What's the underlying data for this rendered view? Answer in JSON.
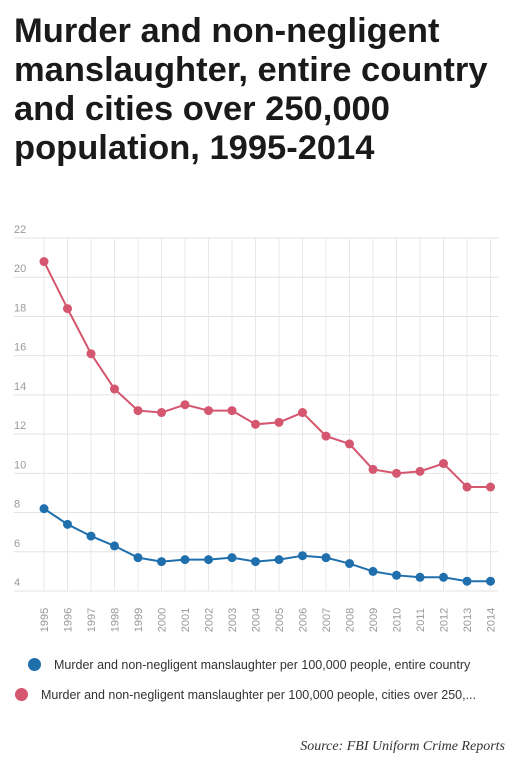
{
  "chart_data": {
    "type": "line",
    "title": "Murder and non-negligent manslaughter, entire country and cities over 250,000 population, 1995-2014",
    "categories": [
      "1995",
      "1996",
      "1997",
      "1998",
      "1999",
      "2000",
      "2001",
      "2002",
      "2003",
      "2004",
      "2005",
      "2006",
      "2007",
      "2008",
      "2009",
      "2010",
      "2011",
      "2012",
      "2013",
      "2014"
    ],
    "series": [
      {
        "name": "Murder and non-negligent manslaughter per 100,000 people, entire country",
        "color": "#1f6fad",
        "values": [
          8.2,
          7.4,
          6.8,
          6.3,
          5.7,
          5.5,
          5.6,
          5.6,
          5.7,
          5.5,
          5.6,
          5.8,
          5.7,
          5.4,
          5.0,
          4.8,
          4.7,
          4.7,
          4.5,
          4.5
        ]
      },
      {
        "name": "Murder and non-negligent manslaughter per 100,000 people, cities over 250,...",
        "color": "#d4566f",
        "values": [
          20.8,
          18.4,
          16.1,
          14.3,
          13.2,
          13.1,
          13.5,
          13.2,
          13.2,
          12.5,
          12.6,
          13.1,
          11.9,
          11.5,
          10.2,
          10.0,
          10.1,
          10.5,
          9.3,
          9.3
        ]
      }
    ],
    "yticks": [
      "4",
      "6",
      "8",
      "10",
      "12",
      "14",
      "16",
      "18",
      "20",
      "22"
    ],
    "ylim": [
      4,
      22
    ],
    "grid": true,
    "legend_position": "bottom",
    "source": "Source: FBI Uniform Crime Reports"
  }
}
